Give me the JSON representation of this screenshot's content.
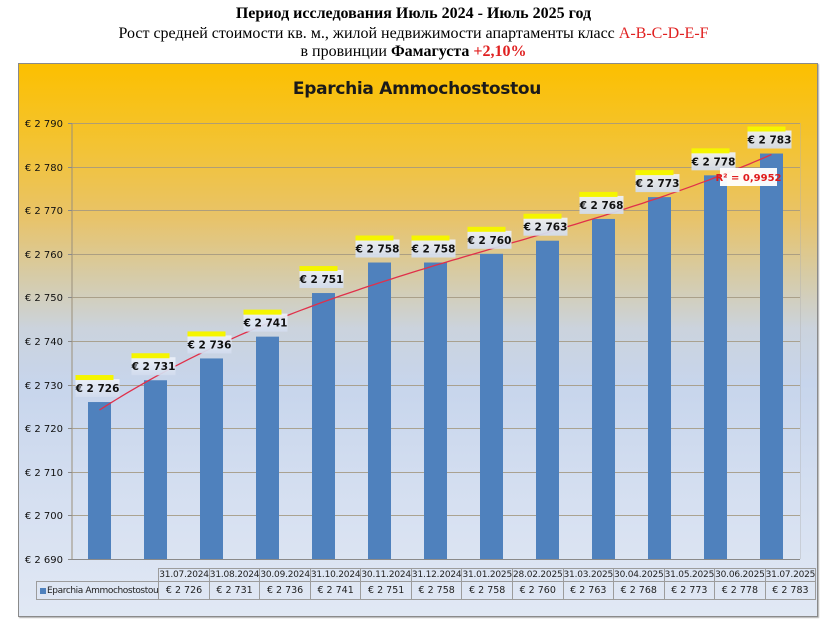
{
  "header": {
    "line1": "Период исследования Июль 2024 - Июль 2025 год",
    "line2_prefix": "Рост средней стоимости кв. м., жилой недвижимости апартаменты класс ",
    "line2_class": "A-B-C-D-E-F",
    "line3_prefix": "в провинции ",
    "line3_region": "Фамагуста",
    "line3_growth": "+2,10%"
  },
  "colors": {
    "bar": "#4f81bd",
    "trendline": "#e0304a",
    "accent_red": "#e02020",
    "label_band": "#f5f500"
  },
  "chart_data": {
    "type": "bar",
    "title": "Eparchia Ammochostostou",
    "xlabel": "",
    "ylabel": "",
    "ylim": [
      2690,
      2790
    ],
    "ytick_step": 10,
    "ytick_labels": [
      "€ 2 690",
      "€ 2 700",
      "€ 2 710",
      "€ 2 720",
      "€ 2 730",
      "€ 2 740",
      "€ 2 750",
      "€ 2 760",
      "€ 2 770",
      "€ 2 780",
      "€ 2 790"
    ],
    "grid": true,
    "categories": [
      "31.07.2024",
      "31.08.2024",
      "30.09.2024",
      "31.10.2024",
      "30.11.2024",
      "31.12.2024",
      "31.01.2025",
      "28.02.2025",
      "31.03.2025",
      "30.04.2025",
      "31.05.2025",
      "30.06.2025",
      "31.07.2025"
    ],
    "series": [
      {
        "name": "Eparchia Ammochostostou",
        "values": [
          2726,
          2731,
          2736,
          2741,
          2751,
          2758,
          2758,
          2760,
          2763,
          2768,
          2773,
          2778,
          2783
        ],
        "labels": [
          "€ 2 726",
          "€ 2 731",
          "€ 2 736",
          "€ 2 741",
          "€ 2 751",
          "€ 2 758",
          "€ 2 758",
          "€ 2 760",
          "€ 2 763",
          "€ 2 768",
          "€ 2 773",
          "€ 2 778",
          "€ 2 783"
        ]
      }
    ],
    "table_labels": [
      "€ 2 726",
      "€ 2 731",
      "€ 2 736",
      "€ 2 741",
      "€ 2 751",
      "€ 2 758",
      "€ 2 758",
      "€ 2 760",
      "€ 2 763",
      "€ 2 768",
      "€ 2 773",
      "€ 2 778",
      "€ 2 783"
    ],
    "trendline": {
      "type": "polynomial",
      "r2_label": "R² = 0,9952"
    },
    "data_table": true
  }
}
